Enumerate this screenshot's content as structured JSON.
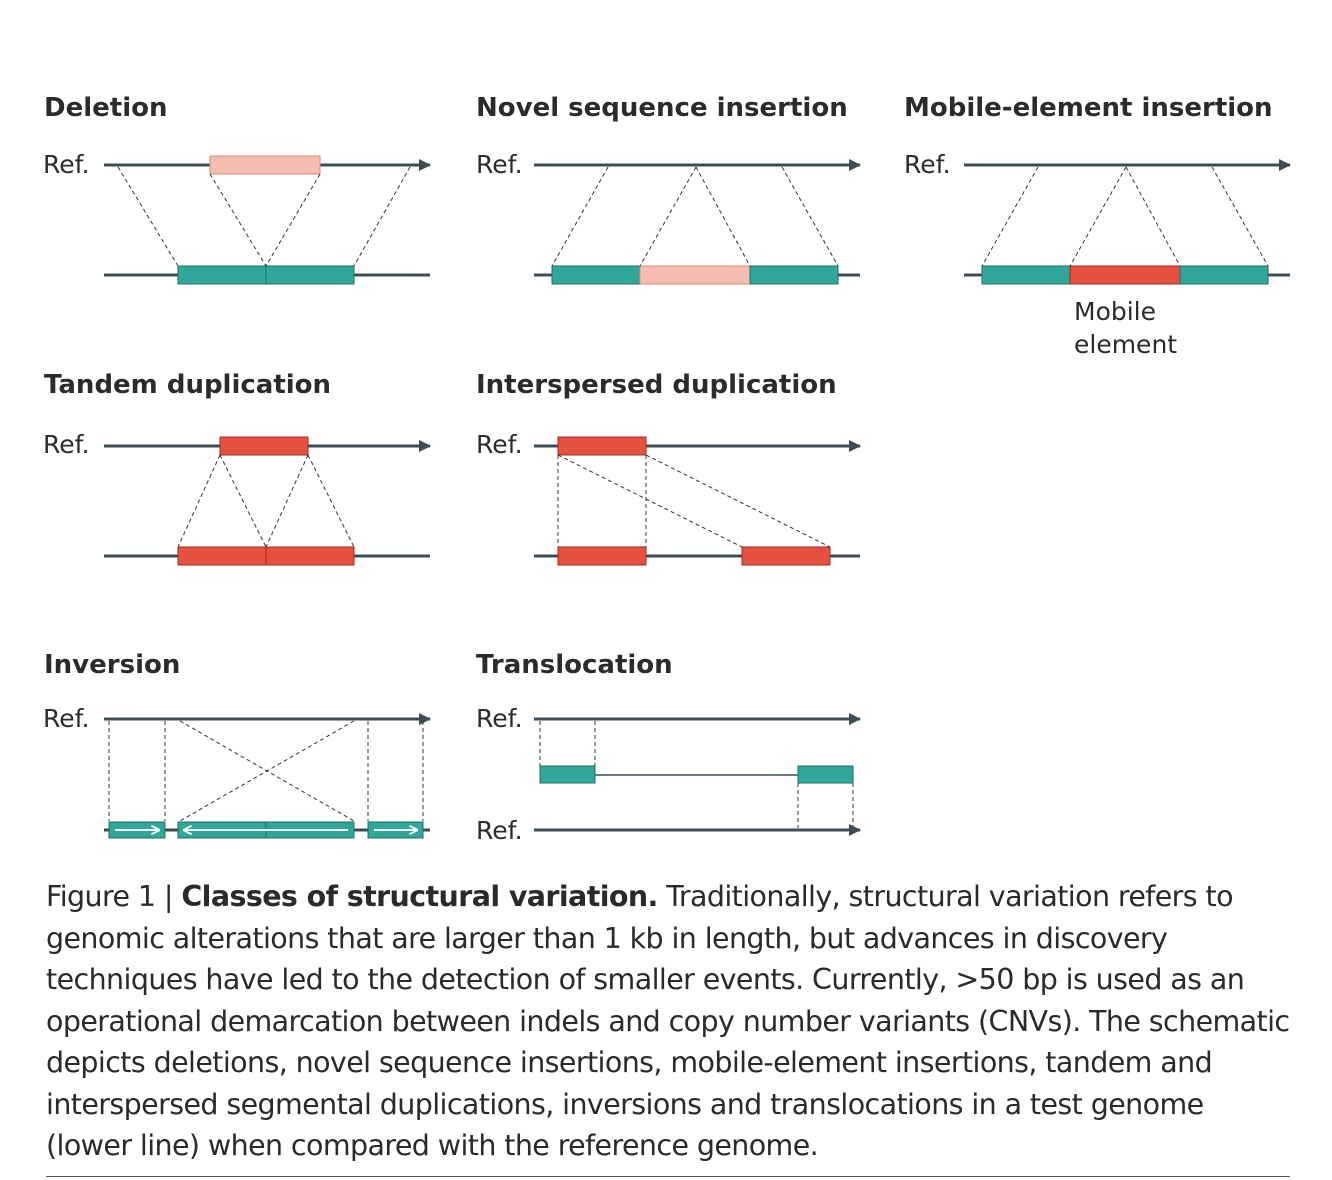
{
  "colors": {
    "line": "#3d4d53",
    "teal": "#2fa79a",
    "red": "#e5503f",
    "pink": "#f4beb1",
    "dash": "#333333"
  },
  "panels": {
    "deletion": {
      "title": "Deletion",
      "ref": "Ref."
    },
    "novel": {
      "title": "Novel sequence insertion",
      "ref": "Ref."
    },
    "mobile": {
      "title": "Mobile-element insertion",
      "ref": "Ref.",
      "element_label_1": "Mobile",
      "element_label_2": "element"
    },
    "tandem": {
      "title": "Tandem duplication",
      "ref": "Ref."
    },
    "interspersed": {
      "title": "Interspersed duplication",
      "ref": "Ref."
    },
    "inversion": {
      "title": "Inversion",
      "ref": "Ref."
    },
    "translocation": {
      "title": "Translocation",
      "ref_top": "Ref.",
      "ref_bottom": "Ref."
    }
  },
  "caption": {
    "lead": "Figure 1 | ",
    "heading": "Classes of structural variation.",
    "body": " Traditionally, structural variation refers to genomic alterations that are larger than 1 kb in length, but advances in discovery techniques have led to the detection of smaller events. Currently, >50 bp is used as an operational demarcation between indels and copy number variants (CNVs). The schematic depicts deletions, novel sequence insertions, mobile-element insertions, tandem and interspersed segmental duplications, inversions and translocations in a test genome (lower line) when compared with the reference genome."
  }
}
